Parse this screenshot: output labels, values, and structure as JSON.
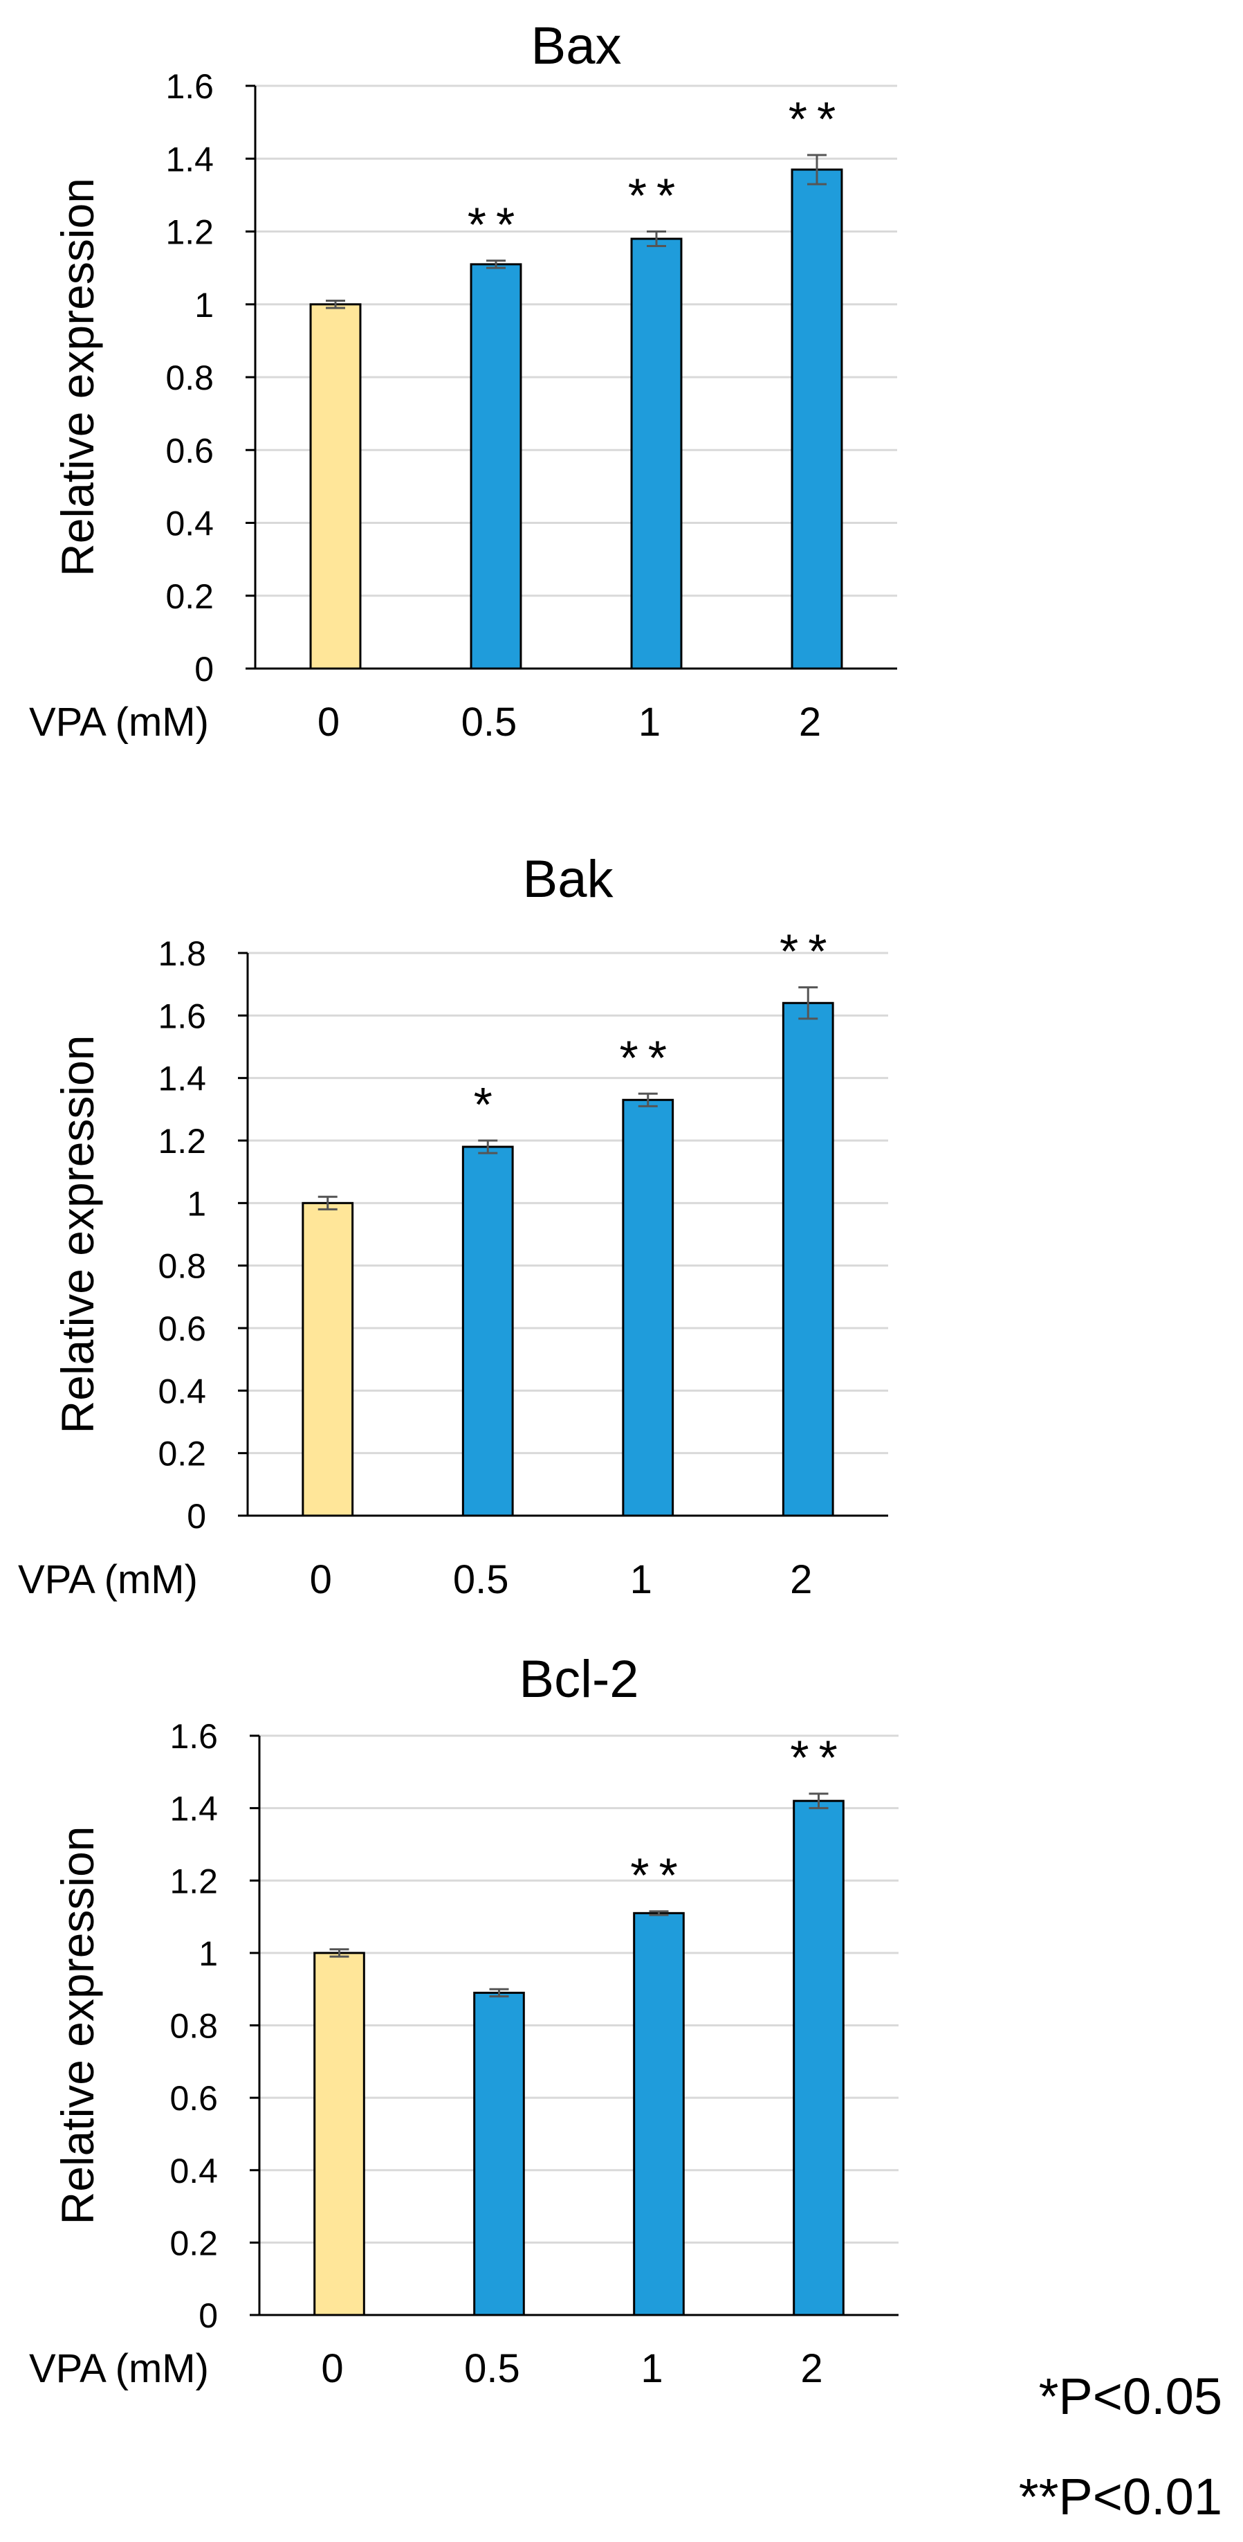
{
  "chart_data": [
    {
      "type": "bar",
      "title": "Bax",
      "ylabel": "Relative expression",
      "xlabel": "VPA (mM)",
      "categories": [
        "0",
        "0.5",
        "1",
        "2"
      ],
      "values": [
        1.0,
        1.11,
        1.18,
        1.37
      ],
      "errors": [
        0.01,
        0.01,
        0.02,
        0.04
      ],
      "significance": [
        "",
        "**",
        "**",
        "**"
      ],
      "ylim": [
        0,
        1.6
      ],
      "yticks": [
        "0",
        "0.2",
        "0.4",
        "0.6",
        "0.8",
        "1",
        "1.2",
        "1.4",
        "1.6"
      ],
      "bar_colors": [
        "#FFE699",
        "#1F9CDB",
        "#1F9CDB",
        "#1F9CDB"
      ],
      "grid": true
    },
    {
      "type": "bar",
      "title": "Bak",
      "ylabel": "Relative expression",
      "xlabel": "VPA (mM)",
      "categories": [
        "0",
        "0.5",
        "1",
        "2"
      ],
      "values": [
        1.0,
        1.18,
        1.33,
        1.64
      ],
      "errors": [
        0.02,
        0.02,
        0.02,
        0.05
      ],
      "significance": [
        "",
        "*",
        "**",
        "**"
      ],
      "ylim": [
        0,
        1.8
      ],
      "yticks": [
        "0",
        "0.2",
        "0.4",
        "0.6",
        "0.8",
        "1",
        "1.2",
        "1.4",
        "1.6",
        "1.8"
      ],
      "bar_colors": [
        "#FFE699",
        "#1F9CDB",
        "#1F9CDB",
        "#1F9CDB"
      ],
      "grid": true
    },
    {
      "type": "bar",
      "title": "Bcl-2",
      "ylabel": "Relative expression",
      "xlabel": "VPA (mM)",
      "categories": [
        "0",
        "0.5",
        "1",
        "2"
      ],
      "values": [
        1.0,
        0.89,
        1.11,
        1.42
      ],
      "errors": [
        0.01,
        0.01,
        0.005,
        0.02
      ],
      "significance": [
        "",
        "",
        "**",
        "**"
      ],
      "ylim": [
        0,
        1.6
      ],
      "yticks": [
        "0",
        "0.2",
        "0.4",
        "0.6",
        "0.8",
        "1",
        "1.2",
        "1.4",
        "1.6"
      ],
      "bar_colors": [
        "#FFE699",
        "#1F9CDB",
        "#1F9CDB",
        "#1F9CDB"
      ],
      "grid": true
    }
  ],
  "notes": {
    "p05": "*P<0.05",
    "p01": "**P<0.01"
  }
}
